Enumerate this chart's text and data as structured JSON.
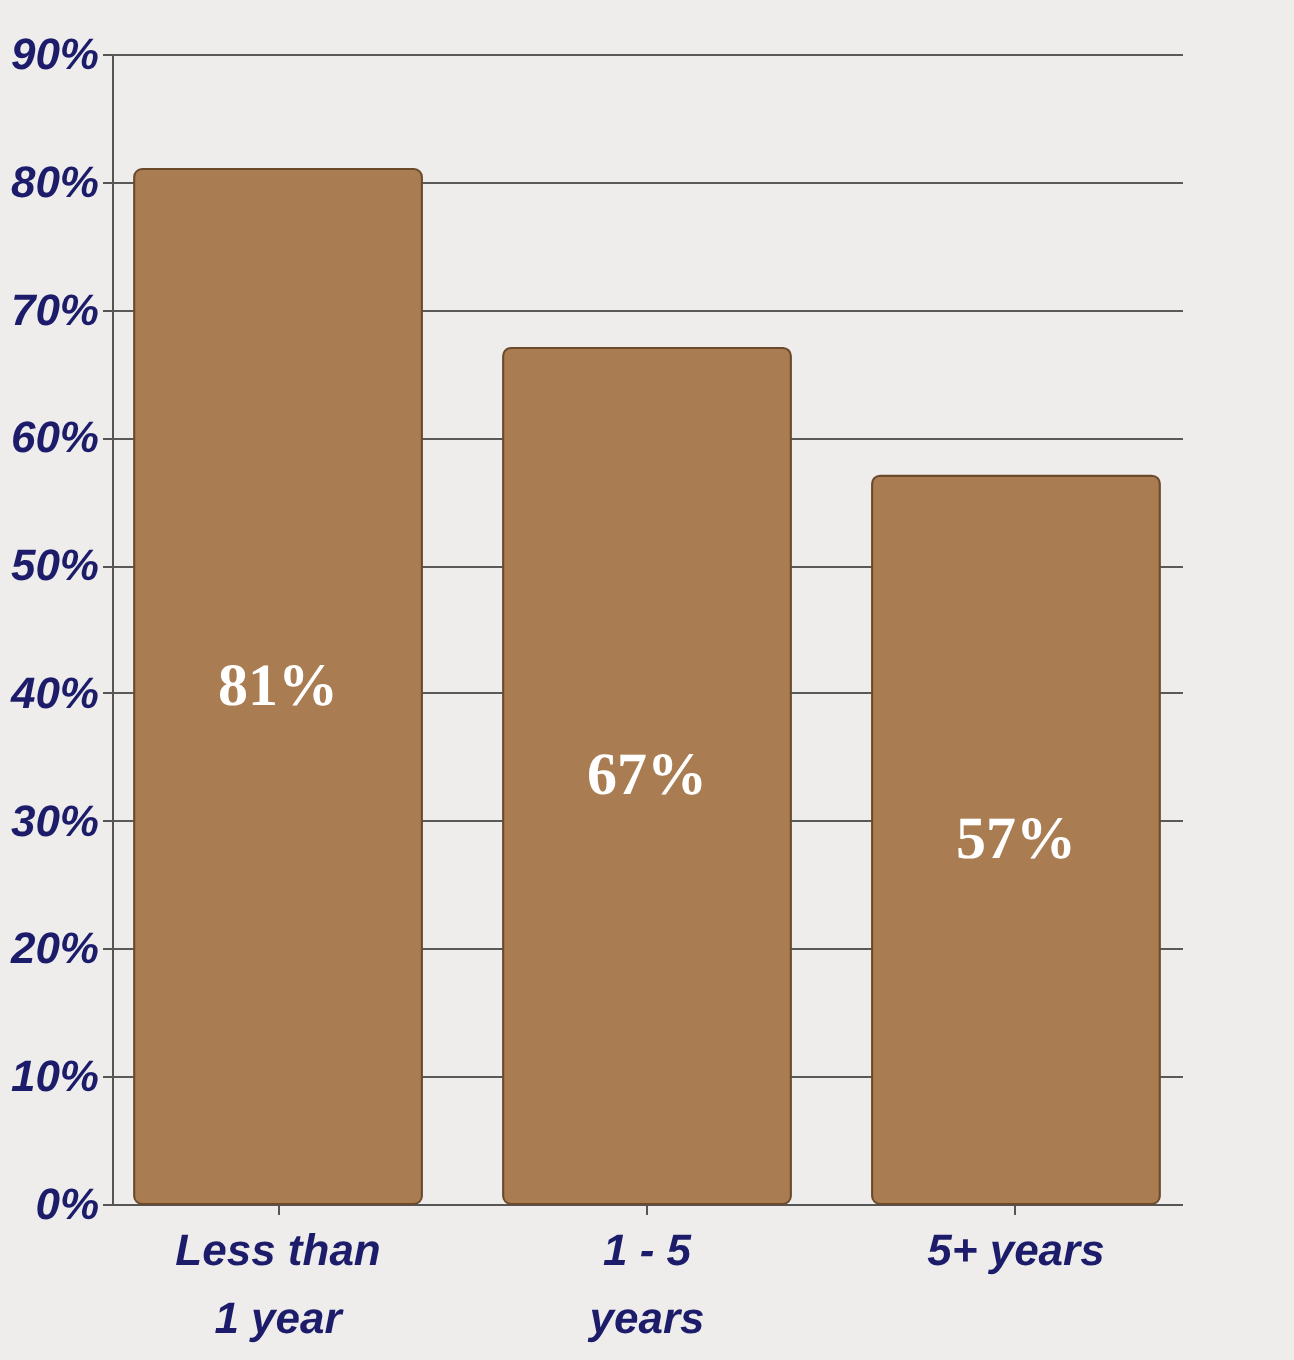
{
  "chart_data": {
    "type": "bar",
    "categories": [
      "Less than 1 year",
      "1 - 5 years",
      "5+ years"
    ],
    "values": [
      81,
      67,
      57
    ],
    "color": "#a97c51",
    "value_labels": [
      "81%",
      "67%",
      "57%"
    ],
    "ylim": [
      0,
      90
    ],
    "yticks": [
      {
        "value": 0,
        "label": "0%"
      },
      {
        "value": 10,
        "label": "10%"
      },
      {
        "value": 20,
        "label": "20%"
      },
      {
        "value": 30,
        "label": "30%"
      },
      {
        "value": 40,
        "label": "40%"
      },
      {
        "value": 50,
        "label": "50%"
      },
      {
        "value": 60,
        "label": "60%"
      },
      {
        "value": 70,
        "label": "70%"
      },
      {
        "value": 80,
        "label": "80%"
      },
      {
        "value": 90,
        "label": "90%"
      }
    ],
    "grid": "y"
  }
}
